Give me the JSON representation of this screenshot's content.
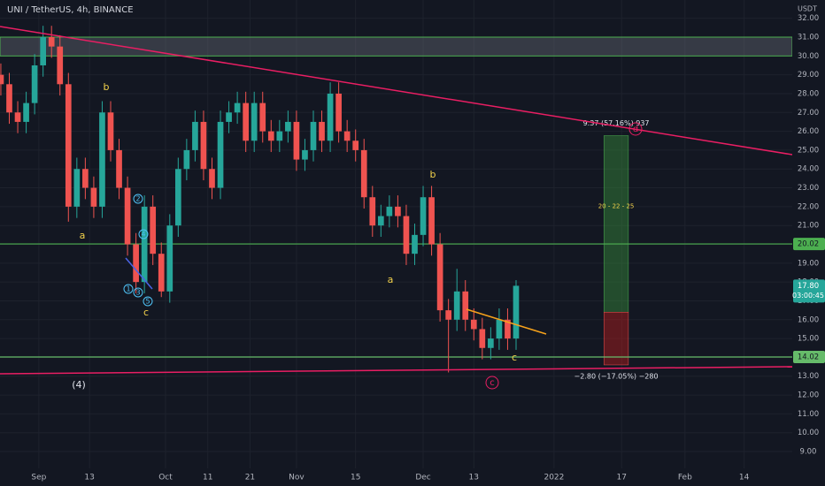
{
  "header": "UNI / TetherUS, 4h, BINANCE",
  "annotations": [
    "a",
    "b",
    "c",
    "1",
    "2",
    "3",
    "4",
    "5",
    "(4)",
    "a",
    "b",
    "c",
    "c",
    "d"
  ],
  "chart_data": {
    "type": "candlestick",
    "currency": "USDT",
    "x": [
      -9,
      -7,
      -5,
      -3,
      -1,
      1,
      3,
      5,
      7,
      9,
      11,
      13,
      15,
      17,
      19,
      21,
      23,
      25,
      27,
      29,
      31,
      33,
      35,
      37,
      39,
      41,
      43,
      45,
      47,
      49,
      51,
      53,
      55,
      57,
      59,
      61,
      63,
      65,
      67,
      69,
      71,
      73,
      75,
      77,
      79,
      81,
      83,
      85,
      87,
      89,
      91,
      93,
      95,
      97,
      99,
      101,
      103,
      105,
      107,
      109,
      111,
      113
    ],
    "open": [
      29,
      28.5,
      27,
      26.5,
      27.5,
      29.5,
      31,
      30.5,
      28.5,
      22,
      24,
      23,
      22,
      27,
      25,
      23,
      20,
      18,
      22,
      19.5,
      17.5,
      21,
      24,
      25,
      26.5,
      24,
      23,
      26.5,
      27,
      27.5,
      25.5,
      27.5,
      26,
      25.5,
      26,
      26.5,
      24.5,
      25,
      26.5,
      25.5,
      28,
      26,
      25.5,
      25,
      22.5,
      21,
      21.5,
      22,
      21.5,
      19.5,
      20.5,
      22.5,
      20,
      16.5,
      16,
      17.5,
      16,
      15.5,
      14.5,
      15,
      16,
      15
    ],
    "high": [
      29.6,
      29.1,
      27.6,
      28.1,
      30.1,
      31.6,
      31.6,
      31.1,
      29.1,
      24.6,
      24.6,
      23.6,
      27.6,
      27.6,
      25.6,
      23.6,
      20.6,
      22.6,
      22.6,
      20.1,
      21.6,
      24.6,
      25.6,
      27.1,
      27.1,
      24.6,
      27.1,
      27.6,
      28.1,
      28.1,
      28.1,
      28.1,
      26.6,
      26.6,
      27.1,
      27.1,
      25.6,
      27.1,
      27.1,
      28.6,
      28.6,
      26.6,
      26.1,
      25.6,
      23.1,
      22.1,
      22.6,
      22.6,
      22.1,
      21.1,
      23.1,
      23.1,
      20.6,
      17.1,
      18.7,
      18.1,
      16.6,
      16.1,
      15.6,
      16.6,
      16.6,
      18.1
    ],
    "low": [
      27.9,
      26.4,
      25.9,
      25.9,
      26.9,
      28.9,
      29.9,
      27.9,
      21.2,
      21.4,
      22.4,
      21.4,
      21.4,
      24.4,
      22.4,
      19.4,
      17.4,
      17.4,
      18.9,
      17.2,
      16.9,
      20.4,
      23.4,
      24.4,
      23.4,
      22.4,
      22.4,
      25.9,
      26.4,
      24.9,
      24.9,
      25.4,
      24.9,
      24.9,
      25.4,
      23.9,
      23.9,
      24.4,
      24.9,
      24.9,
      25.4,
      24.9,
      24.4,
      21.9,
      20.4,
      20.4,
      20.9,
      20.9,
      18.9,
      18.9,
      19.9,
      19.4,
      15.9,
      13.2,
      15.4,
      15.4,
      14.9,
      13.9,
      13.9,
      14.4,
      14.4,
      14.4
    ],
    "close": [
      28.5,
      27,
      26.5,
      27.5,
      29.5,
      31,
      30.5,
      28.5,
      22,
      24,
      23,
      22,
      27,
      25,
      23,
      20,
      18,
      22,
      19.5,
      17.5,
      21,
      24,
      25,
      26.5,
      24,
      23,
      26.5,
      27,
      27.5,
      25.5,
      27.5,
      26,
      25.5,
      26,
      26.5,
      24.5,
      25,
      26.5,
      25.5,
      28,
      26,
      25.5,
      25,
      22.5,
      21,
      21.5,
      22,
      21.5,
      19.5,
      20.5,
      22.5,
      20,
      16.5,
      16,
      17.5,
      16,
      15.5,
      14.5,
      15,
      16,
      15,
      17.8
    ],
    "up_color": "#26a69a",
    "down_color": "#ef5350",
    "xlim": [
      -9.2,
      178.4
    ],
    "xticks": [
      {
        "value": 0,
        "label": "Sep"
      },
      {
        "value": 12,
        "label": "13"
      },
      {
        "value": 30,
        "label": "Oct"
      },
      {
        "value": 40,
        "label": "11"
      },
      {
        "value": 50,
        "label": "21"
      },
      {
        "value": 61,
        "label": "Nov"
      },
      {
        "value": 75,
        "label": "15"
      },
      {
        "value": 91,
        "label": "Dec"
      },
      {
        "value": 103,
        "label": "13"
      },
      {
        "value": 122,
        "label": "2022"
      },
      {
        "value": 138,
        "label": "17"
      },
      {
        "value": 153,
        "label": "Feb"
      },
      {
        "value": 167,
        "label": "14"
      }
    ],
    "ylim": [
      8.11,
      32.97
    ],
    "yticks": [
      {
        "value": 9,
        "label": "9.00"
      },
      {
        "value": 10,
        "label": "10.00"
      },
      {
        "value": 11,
        "label": "11.00"
      },
      {
        "value": 12,
        "label": "12.00"
      },
      {
        "value": 13,
        "label": "13.00"
      },
      {
        "value": 14,
        "label": "14.00"
      },
      {
        "value": 15,
        "label": "15.00"
      },
      {
        "value": 16,
        "label": "16.00"
      },
      {
        "value": 17,
        "label": "17.00"
      },
      {
        "value": 18,
        "label": "18.00"
      },
      {
        "value": 19,
        "label": "19.00"
      },
      {
        "value": 20,
        "label": "20.00"
      },
      {
        "value": 21,
        "label": "21.00"
      },
      {
        "value": 22,
        "label": "22.00"
      },
      {
        "value": 23,
        "label": "23.00"
      },
      {
        "value": 24,
        "label": "24.00"
      },
      {
        "value": 25,
        "label": "25.00"
      },
      {
        "value": 26,
        "label": "26.00"
      },
      {
        "value": 27,
        "label": "27.00"
      },
      {
        "value": 28,
        "label": "28.00"
      },
      {
        "value": 29,
        "label": "29.00"
      },
      {
        "value": 30,
        "label": "30.00"
      },
      {
        "value": 31,
        "label": "31.00"
      },
      {
        "value": 32,
        "label": "32.00"
      }
    ],
    "grid": true,
    "zone": [
      30,
      31
    ],
    "price_lines": [
      {
        "value": 20.02,
        "color": "#4caf50"
      },
      {
        "value": 14.02,
        "color": "#66bb6a"
      }
    ],
    "last_price": {
      "value": 17.8,
      "label": "17.80",
      "countdown": "03:00:45"
    },
    "position": {
      "x_range": [
        133.8,
        139.6
      ],
      "take_profit": 25.77,
      "entry": 16.4,
      "stop": 13.6,
      "target_label": "9.37 (57.16%) 937",
      "targets": "20 - 22 - 25",
      "stop_label": "−2.80 (−17.05%) −280"
    }
  }
}
